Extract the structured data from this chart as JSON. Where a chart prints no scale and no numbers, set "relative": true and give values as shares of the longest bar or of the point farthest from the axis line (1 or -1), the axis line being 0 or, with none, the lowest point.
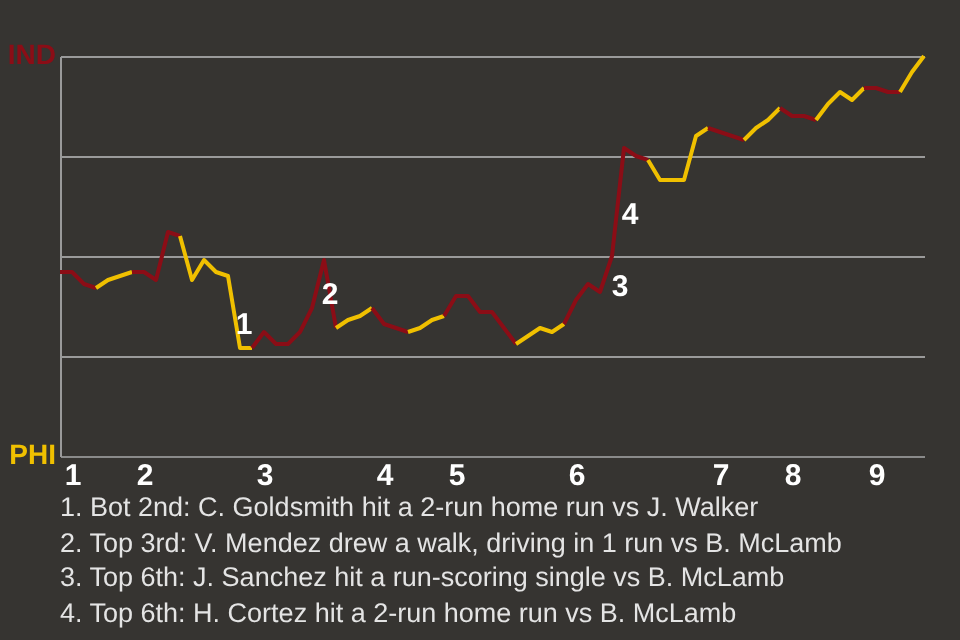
{
  "chart_data": {
    "type": "line",
    "relative": true,
    "categories": [
      null,
      "1",
      null,
      null,
      null,
      null,
      null,
      "2",
      null,
      null,
      null,
      null,
      null,
      null,
      null,
      null,
      null,
      "3",
      null,
      null,
      null,
      null,
      null,
      null,
      null,
      null,
      null,
      "4",
      null,
      null,
      null,
      null,
      null,
      "5",
      null,
      null,
      null,
      null,
      null,
      null,
      null,
      null,
      null,
      "6",
      null,
      null,
      null,
      null,
      null,
      null,
      null,
      null,
      null,
      null,
      null,
      "7",
      null,
      null,
      null,
      null,
      null,
      "8",
      null,
      null,
      null,
      null,
      null,
      null,
      "9",
      null,
      null,
      null,
      null
    ],
    "grid": "y",
    "series": [
      {
        "color": "#8b0d16",
        "values": [
          0.46,
          0.46,
          0.43,
          0.42,
          null,
          null,
          null,
          null,
          null,
          null,
          null,
          null,
          null,
          null,
          null,
          null,
          null,
          null,
          null,
          null,
          null,
          null,
          null,
          null,
          null,
          null,
          null,
          null,
          null,
          null,
          null,
          null,
          null,
          null,
          null,
          null,
          null,
          null,
          null,
          null,
          null,
          null,
          null,
          null,
          null,
          null,
          null,
          null,
          null,
          null,
          null,
          null,
          null,
          null,
          null,
          null,
          null,
          null,
          null,
          null,
          null,
          null,
          null,
          null,
          null,
          null,
          null,
          null,
          null,
          null,
          null,
          null,
          null
        ]
      },
      {
        "color": "#f0c000",
        "values": [
          null,
          null,
          null,
          0.42,
          0.44,
          0.45,
          0.46,
          null,
          null,
          null,
          null,
          null,
          null,
          null,
          null,
          null,
          null,
          null,
          null,
          null,
          null,
          null,
          null,
          null,
          null,
          null,
          null,
          null,
          null,
          null,
          null,
          null,
          null,
          null,
          null,
          null,
          null,
          null,
          null,
          null,
          null,
          null,
          null,
          null,
          null,
          null,
          null,
          null,
          null,
          null,
          null,
          null,
          null,
          null,
          null,
          null,
          null,
          null,
          null,
          null,
          null,
          null,
          null,
          null,
          null,
          null,
          null,
          null,
          null,
          null,
          null,
          null,
          null
        ]
      },
      {
        "color": "#8b0d16",
        "values": [
          null,
          null,
          null,
          null,
          null,
          null,
          0.46,
          0.46,
          0.44,
          0.56,
          0.55,
          null,
          null,
          null,
          null,
          null,
          null,
          null,
          null,
          null,
          null,
          null,
          null,
          null,
          null,
          null,
          null,
          null,
          null,
          null,
          null,
          null,
          null,
          null,
          null,
          null,
          null,
          null,
          null,
          null,
          null,
          null,
          null,
          null,
          null,
          null,
          null,
          null,
          null,
          null,
          null,
          null,
          null,
          null,
          null,
          null,
          null,
          null,
          null,
          null,
          null,
          null,
          null,
          null,
          null,
          null,
          null,
          null,
          null,
          null,
          null,
          null,
          null
        ]
      },
      {
        "color": "#f0c000",
        "values": [
          null,
          null,
          null,
          null,
          null,
          null,
          null,
          null,
          null,
          null,
          0.55,
          0.44,
          0.49,
          0.46,
          0.45,
          0.27,
          0.27,
          null,
          null,
          null,
          null,
          null,
          null,
          null,
          null,
          null,
          null,
          null,
          null,
          null,
          null,
          null,
          null,
          null,
          null,
          null,
          null,
          null,
          null,
          null,
          null,
          null,
          null,
          null,
          null,
          null,
          null,
          null,
          null,
          null,
          null,
          null,
          null,
          null,
          null,
          null,
          null,
          null,
          null,
          null,
          null,
          null,
          null,
          null,
          null,
          null,
          null,
          null,
          null,
          null,
          null,
          null,
          null
        ]
      },
      {
        "color": "#8b0d16",
        "values": [
          null,
          null,
          null,
          null,
          null,
          null,
          null,
          null,
          null,
          null,
          null,
          null,
          null,
          null,
          null,
          null,
          0.27,
          0.31,
          0.28,
          0.28,
          0.31,
          0.37,
          0.49,
          0.32,
          null,
          null,
          null,
          null,
          null,
          null,
          null,
          null,
          null,
          null,
          null,
          null,
          null,
          null,
          null,
          null,
          null,
          null,
          null,
          null,
          null,
          null,
          null,
          null,
          null,
          null,
          null,
          null,
          null,
          null,
          null,
          null,
          null,
          null,
          null,
          null,
          null,
          null,
          null,
          null,
          null,
          null,
          null,
          null,
          null,
          null,
          null,
          null,
          null
        ]
      },
      {
        "color": "#f0c000",
        "values": [
          null,
          null,
          null,
          null,
          null,
          null,
          null,
          null,
          null,
          null,
          null,
          null,
          null,
          null,
          null,
          null,
          null,
          null,
          null,
          null,
          null,
          null,
          null,
          0.32,
          0.34,
          0.35,
          0.37,
          null,
          null,
          null,
          null,
          null,
          null,
          null,
          null,
          null,
          null,
          null,
          null,
          null,
          null,
          null,
          null,
          null,
          null,
          null,
          null,
          null,
          null,
          null,
          null,
          null,
          null,
          null,
          null,
          null,
          null,
          null,
          null,
          null,
          null,
          null,
          null,
          null,
          null,
          null,
          null,
          null,
          null,
          null,
          null,
          null,
          null
        ]
      },
      {
        "color": "#8b0d16",
        "values": [
          null,
          null,
          null,
          null,
          null,
          null,
          null,
          null,
          null,
          null,
          null,
          null,
          null,
          null,
          null,
          null,
          null,
          null,
          null,
          null,
          null,
          null,
          null,
          null,
          null,
          null,
          0.37,
          0.33,
          0.32,
          0.31,
          null,
          null,
          null,
          null,
          null,
          null,
          null,
          null,
          null,
          null,
          null,
          null,
          null,
          null,
          null,
          null,
          null,
          null,
          null,
          null,
          null,
          null,
          null,
          null,
          null,
          null,
          null,
          null,
          null,
          null,
          null,
          null,
          null,
          null,
          null,
          null,
          null,
          null,
          null,
          null,
          null,
          null,
          null
        ]
      },
      {
        "color": "#f0c000",
        "values": [
          null,
          null,
          null,
          null,
          null,
          null,
          null,
          null,
          null,
          null,
          null,
          null,
          null,
          null,
          null,
          null,
          null,
          null,
          null,
          null,
          null,
          null,
          null,
          null,
          null,
          null,
          null,
          null,
          null,
          0.31,
          0.32,
          0.34,
          0.35,
          null,
          null,
          null,
          null,
          null,
          null,
          null,
          null,
          null,
          null,
          null,
          null,
          null,
          null,
          null,
          null,
          null,
          null,
          null,
          null,
          null,
          null,
          null,
          null,
          null,
          null,
          null,
          null,
          null,
          null,
          null,
          null,
          null,
          null,
          null,
          null,
          null,
          null,
          null,
          null
        ]
      },
      {
        "color": "#8b0d16",
        "values": [
          null,
          null,
          null,
          null,
          null,
          null,
          null,
          null,
          null,
          null,
          null,
          null,
          null,
          null,
          null,
          null,
          null,
          null,
          null,
          null,
          null,
          null,
          null,
          null,
          null,
          null,
          null,
          null,
          null,
          null,
          null,
          null,
          0.35,
          0.4,
          0.4,
          0.36,
          0.36,
          0.32,
          0.28,
          null,
          null,
          null,
          null,
          null,
          null,
          null,
          null,
          null,
          null,
          null,
          null,
          null,
          null,
          null,
          null,
          null,
          null,
          null,
          null,
          null,
          null,
          null,
          null,
          null,
          null,
          null,
          null,
          null,
          null,
          null,
          null,
          null,
          null
        ]
      },
      {
        "color": "#f0c000",
        "values": [
          null,
          null,
          null,
          null,
          null,
          null,
          null,
          null,
          null,
          null,
          null,
          null,
          null,
          null,
          null,
          null,
          null,
          null,
          null,
          null,
          null,
          null,
          null,
          null,
          null,
          null,
          null,
          null,
          null,
          null,
          null,
          null,
          null,
          null,
          null,
          null,
          null,
          null,
          0.28,
          0.3,
          0.32,
          0.31,
          0.33,
          null,
          null,
          null,
          null,
          null,
          null,
          null,
          null,
          null,
          null,
          null,
          null,
          null,
          null,
          null,
          null,
          null,
          null,
          null,
          null,
          null,
          null,
          null,
          null,
          null,
          null,
          null,
          null,
          null,
          null
        ]
      },
      {
        "color": "#8b0d16",
        "values": [
          null,
          null,
          null,
          null,
          null,
          null,
          null,
          null,
          null,
          null,
          null,
          null,
          null,
          null,
          null,
          null,
          null,
          null,
          null,
          null,
          null,
          null,
          null,
          null,
          null,
          null,
          null,
          null,
          null,
          null,
          null,
          null,
          null,
          null,
          null,
          null,
          null,
          null,
          null,
          null,
          null,
          null,
          0.33,
          0.39,
          0.43,
          0.41,
          0.5,
          0.77,
          0.75,
          0.74,
          null,
          null,
          null,
          null,
          null,
          null,
          null,
          null,
          null,
          null,
          null,
          null,
          null,
          null,
          null,
          null,
          null,
          null,
          null,
          null,
          null,
          null,
          null
        ]
      },
      {
        "color": "#f0c000",
        "values": [
          null,
          null,
          null,
          null,
          null,
          null,
          null,
          null,
          null,
          null,
          null,
          null,
          null,
          null,
          null,
          null,
          null,
          null,
          null,
          null,
          null,
          null,
          null,
          null,
          null,
          null,
          null,
          null,
          null,
          null,
          null,
          null,
          null,
          null,
          null,
          null,
          null,
          null,
          null,
          null,
          null,
          null,
          null,
          null,
          null,
          null,
          null,
          null,
          null,
          0.74,
          0.69,
          0.69,
          0.69,
          0.8,
          0.82,
          null,
          null,
          null,
          null,
          null,
          null,
          null,
          null,
          null,
          null,
          null,
          null,
          null,
          null,
          null,
          null,
          null,
          null
        ]
      },
      {
        "color": "#8b0d16",
        "values": [
          null,
          null,
          null,
          null,
          null,
          null,
          null,
          null,
          null,
          null,
          null,
          null,
          null,
          null,
          null,
          null,
          null,
          null,
          null,
          null,
          null,
          null,
          null,
          null,
          null,
          null,
          null,
          null,
          null,
          null,
          null,
          null,
          null,
          null,
          null,
          null,
          null,
          null,
          null,
          null,
          null,
          null,
          null,
          null,
          null,
          null,
          null,
          null,
          null,
          null,
          null,
          null,
          null,
          null,
          0.82,
          0.81,
          0.8,
          0.79,
          null,
          null,
          null,
          null,
          null,
          null,
          null,
          null,
          null,
          null,
          null,
          null,
          null,
          null,
          null
        ]
      },
      {
        "color": "#f0c000",
        "values": [
          null,
          null,
          null,
          null,
          null,
          null,
          null,
          null,
          null,
          null,
          null,
          null,
          null,
          null,
          null,
          null,
          null,
          null,
          null,
          null,
          null,
          null,
          null,
          null,
          null,
          null,
          null,
          null,
          null,
          null,
          null,
          null,
          null,
          null,
          null,
          null,
          null,
          null,
          null,
          null,
          null,
          null,
          null,
          null,
          null,
          null,
          null,
          null,
          null,
          null,
          null,
          null,
          null,
          null,
          null,
          null,
          null,
          0.79,
          0.82,
          0.84,
          0.87,
          null,
          null,
          null,
          null,
          null,
          null,
          null,
          null,
          null,
          null,
          null,
          null
        ]
      },
      {
        "color": "#8b0d16",
        "values": [
          null,
          null,
          null,
          null,
          null,
          null,
          null,
          null,
          null,
          null,
          null,
          null,
          null,
          null,
          null,
          null,
          null,
          null,
          null,
          null,
          null,
          null,
          null,
          null,
          null,
          null,
          null,
          null,
          null,
          null,
          null,
          null,
          null,
          null,
          null,
          null,
          null,
          null,
          null,
          null,
          null,
          null,
          null,
          null,
          null,
          null,
          null,
          null,
          null,
          null,
          null,
          null,
          null,
          null,
          null,
          null,
          null,
          null,
          null,
          null,
          0.87,
          0.85,
          0.85,
          0.84,
          null,
          null,
          null,
          null,
          null,
          null,
          null,
          null,
          null
        ]
      },
      {
        "color": "#f0c000",
        "values": [
          null,
          null,
          null,
          null,
          null,
          null,
          null,
          null,
          null,
          null,
          null,
          null,
          null,
          null,
          null,
          null,
          null,
          null,
          null,
          null,
          null,
          null,
          null,
          null,
          null,
          null,
          null,
          null,
          null,
          null,
          null,
          null,
          null,
          null,
          null,
          null,
          null,
          null,
          null,
          null,
          null,
          null,
          null,
          null,
          null,
          null,
          null,
          null,
          null,
          null,
          null,
          null,
          null,
          null,
          null,
          null,
          null,
          null,
          null,
          null,
          null,
          null,
          null,
          0.84,
          0.88,
          0.91,
          0.89,
          0.92,
          null,
          null,
          null,
          null,
          null
        ]
      },
      {
        "color": "#8b0d16",
        "values": [
          null,
          null,
          null,
          null,
          null,
          null,
          null,
          null,
          null,
          null,
          null,
          null,
          null,
          null,
          null,
          null,
          null,
          null,
          null,
          null,
          null,
          null,
          null,
          null,
          null,
          null,
          null,
          null,
          null,
          null,
          null,
          null,
          null,
          null,
          null,
          null,
          null,
          null,
          null,
          null,
          null,
          null,
          null,
          null,
          null,
          null,
          null,
          null,
          null,
          null,
          null,
          null,
          null,
          null,
          null,
          null,
          null,
          null,
          null,
          null,
          null,
          null,
          null,
          null,
          null,
          null,
          null,
          0.92,
          0.92,
          0.91,
          0.91,
          null,
          null
        ]
      },
      {
        "color": "#f0c000",
        "values": [
          null,
          null,
          null,
          null,
          null,
          null,
          null,
          null,
          null,
          null,
          null,
          null,
          null,
          null,
          null,
          null,
          null,
          null,
          null,
          null,
          null,
          null,
          null,
          null,
          null,
          null,
          null,
          null,
          null,
          null,
          null,
          null,
          null,
          null,
          null,
          null,
          null,
          null,
          null,
          null,
          null,
          null,
          null,
          null,
          null,
          null,
          null,
          null,
          null,
          null,
          null,
          null,
          null,
          null,
          null,
          null,
          null,
          null,
          null,
          null,
          null,
          null,
          null,
          null,
          null,
          null,
          null,
          null,
          null,
          null,
          0.91,
          0.96,
          1.0
        ]
      }
    ],
    "annotations": [
      "IND",
      "PHI",
      "1",
      "2",
      "3",
      "4",
      "1. Bot 2nd: C. Goldsmith hit a 2-run home run vs J. Walker",
      "2. Top 3rd: V. Mendez drew a walk, driving in 1 run vs B. McLamb",
      "3. Top 6th: J. Sanchez hit a run-scoring single vs B. McLamb",
      "4. Top 6th: H. Cortez hit a 2-run home run vs B. McLamb"
    ]
  }
}
